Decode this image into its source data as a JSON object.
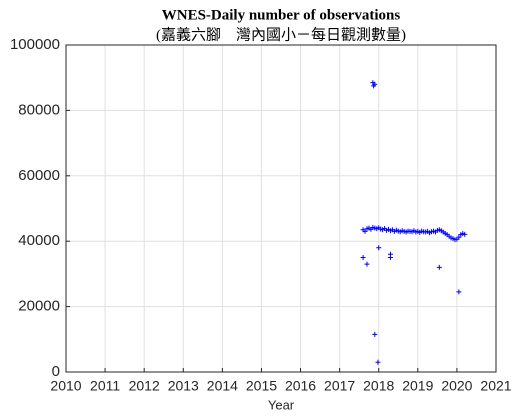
{
  "chart_data": {
    "type": "scatter",
    "title": "WNES-Daily number of observations",
    "subtitle": "(嘉義六腳　灣內國小－每日觀測數量)",
    "xlabel": "Year",
    "x": [
      2017.6,
      2017.65,
      2017.7,
      2017.75,
      2017.8,
      2017.85,
      2017.9,
      2017.95,
      2018.0,
      2018.05,
      2018.1,
      2018.15,
      2018.2,
      2018.25,
      2018.3,
      2018.35,
      2018.4,
      2018.45,
      2018.5,
      2018.55,
      2018.6,
      2018.65,
      2018.7,
      2018.75,
      2018.8,
      2018.85,
      2018.9,
      2018.95,
      2019.0,
      2019.05,
      2019.1,
      2019.15,
      2019.2,
      2019.25,
      2019.3,
      2019.35,
      2019.4,
      2019.45,
      2019.5,
      2019.55,
      2019.6,
      2019.65,
      2019.7,
      2019.75,
      2019.8,
      2019.85,
      2019.9,
      2019.95,
      2020.0,
      2020.05,
      2020.1,
      2020.15,
      2020.2,
      2017.6,
      2017.7,
      2017.85,
      2017.87,
      2017.9,
      2017.9,
      2017.98,
      2018.0,
      2018.3,
      2018.3,
      2019.55,
      2020.05
    ],
    "values": [
      43500,
      43000,
      43800,
      44000,
      43600,
      44200,
      44000,
      43800,
      44100,
      43700,
      43500,
      43900,
      43300,
      43600,
      43200,
      43500,
      43000,
      43400,
      43100,
      42900,
      43200,
      43000,
      42800,
      43100,
      43000,
      42900,
      43200,
      42800,
      43000,
      42700,
      43100,
      42900,
      42800,
      43000,
      42600,
      42900,
      43100,
      42800,
      43300,
      43500,
      43200,
      42800,
      42400,
      42000,
      41500,
      41000,
      40800,
      40500,
      40600,
      41200,
      42000,
      42300,
      42100,
      35000,
      33000,
      88500,
      87500,
      88000,
      11500,
      3000,
      38000,
      36000,
      35000,
      32000,
      24500
    ],
    "color": "#0000ff",
    "marker": "+",
    "xlim": [
      2010,
      2021
    ],
    "xticks": [
      2010,
      2011,
      2012,
      2013,
      2014,
      2015,
      2016,
      2017,
      2018,
      2019,
      2020,
      2021
    ],
    "ylim": [
      0,
      100000
    ],
    "yticks": [
      0,
      20000,
      40000,
      60000,
      80000,
      100000
    ],
    "grid": true
  }
}
